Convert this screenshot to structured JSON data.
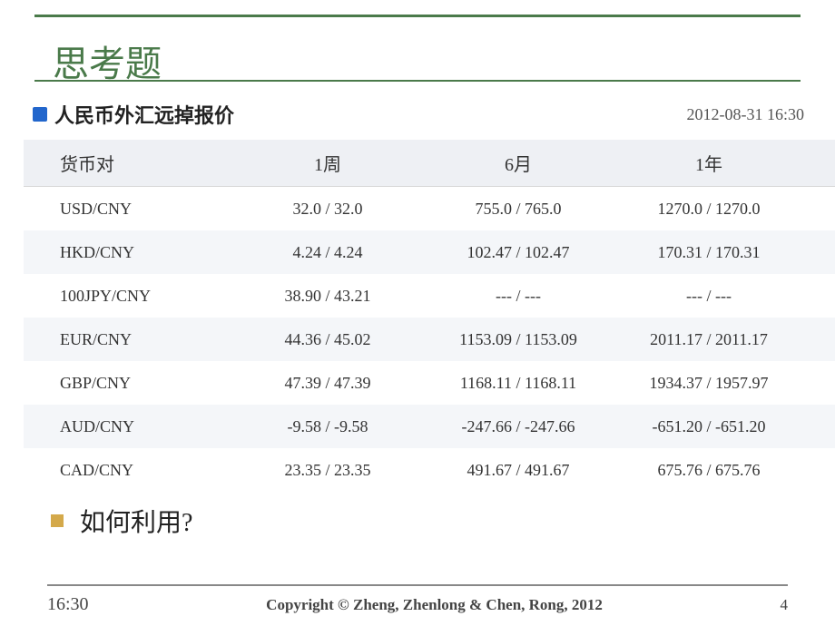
{
  "heading": "思考题",
  "table": {
    "title": "人民币外汇远掉报价",
    "timestamp": "2012-08-31 16:30",
    "columns": [
      "货币对",
      "1周",
      "6月",
      "1年"
    ],
    "rows": [
      {
        "pair": "USD/CNY",
        "w1": "32.0 / 32.0",
        "m6": "755.0 / 765.0",
        "y1": "1270.0 / 1270.0",
        "zebra": false
      },
      {
        "pair": "HKD/CNY",
        "w1": "4.24 / 4.24",
        "m6": "102.47 / 102.47",
        "y1": "170.31 / 170.31",
        "zebra": true
      },
      {
        "pair": "100JPY/CNY",
        "w1": "38.90 / 43.21",
        "m6": "--- / ---",
        "y1": "--- / ---",
        "zebra": false
      },
      {
        "pair": "EUR/CNY",
        "w1": "44.36 / 45.02",
        "m6": "1153.09 / 1153.09",
        "y1": "2011.17 / 2011.17",
        "zebra": true
      },
      {
        "pair": "GBP/CNY",
        "w1": "47.39 / 47.39",
        "m6": "1168.11 / 1168.11",
        "y1": "1934.37 / 1957.97",
        "zebra": false
      },
      {
        "pair": "AUD/CNY",
        "w1": "-9.58 / -9.58",
        "m6": "-247.66 / -247.66",
        "y1": "-651.20 / -651.20",
        "zebra": true
      },
      {
        "pair": "CAD/CNY",
        "w1": "23.35 / 23.35",
        "m6": "491.67 / 491.67",
        "y1": "675.76 / 675.76",
        "zebra": false
      }
    ]
  },
  "bullet_text": "如何利用?",
  "footer": {
    "time": "16:30",
    "copyright": "Copyright © Zheng, Zhenlong & Chen, Rong, 2012",
    "page": "4"
  },
  "colors": {
    "heading_color": "#4a7a4a",
    "line_color": "#4a7a4a",
    "bullet_color": "#d4a94a",
    "zebra_bg": "#f4f6f9",
    "header_bg": "#eef0f4"
  }
}
